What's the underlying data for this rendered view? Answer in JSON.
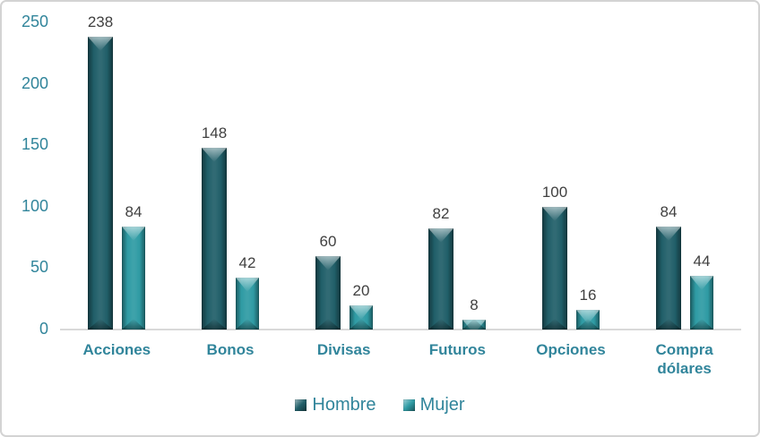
{
  "chart_data": {
    "type": "bar",
    "title": "",
    "xlabel": "",
    "ylabel": "",
    "categories": [
      "Acciones",
      "Bonos",
      "Divisas",
      "Futuros",
      "Opciones",
      "Compra dólares"
    ],
    "series": [
      {
        "name": "Hombre",
        "color": "#215f69",
        "values": [
          238,
          148,
          60,
          82,
          100,
          84
        ]
      },
      {
        "name": "Mujer",
        "color": "#2f9ba4",
        "values": [
          84,
          42,
          20,
          8,
          16,
          44
        ]
      }
    ],
    "yticks": [
      0,
      50,
      100,
      150,
      200,
      250
    ],
    "ylim": [
      0,
      250
    ],
    "grid": false,
    "data_labels": true,
    "legend_position": "bottom"
  },
  "legend": {
    "items": [
      {
        "label": "Hombre",
        "color": "#215f69"
      },
      {
        "label": "Mujer",
        "color": "#2f9ba4"
      }
    ]
  },
  "colors": {
    "axis_text": "#31859b",
    "category_text": "#31859b",
    "data_label_text": "#404040",
    "axis_line": "#d9d9d9",
    "frame_border": "#d3d3d3",
    "background": "#ffffff"
  }
}
